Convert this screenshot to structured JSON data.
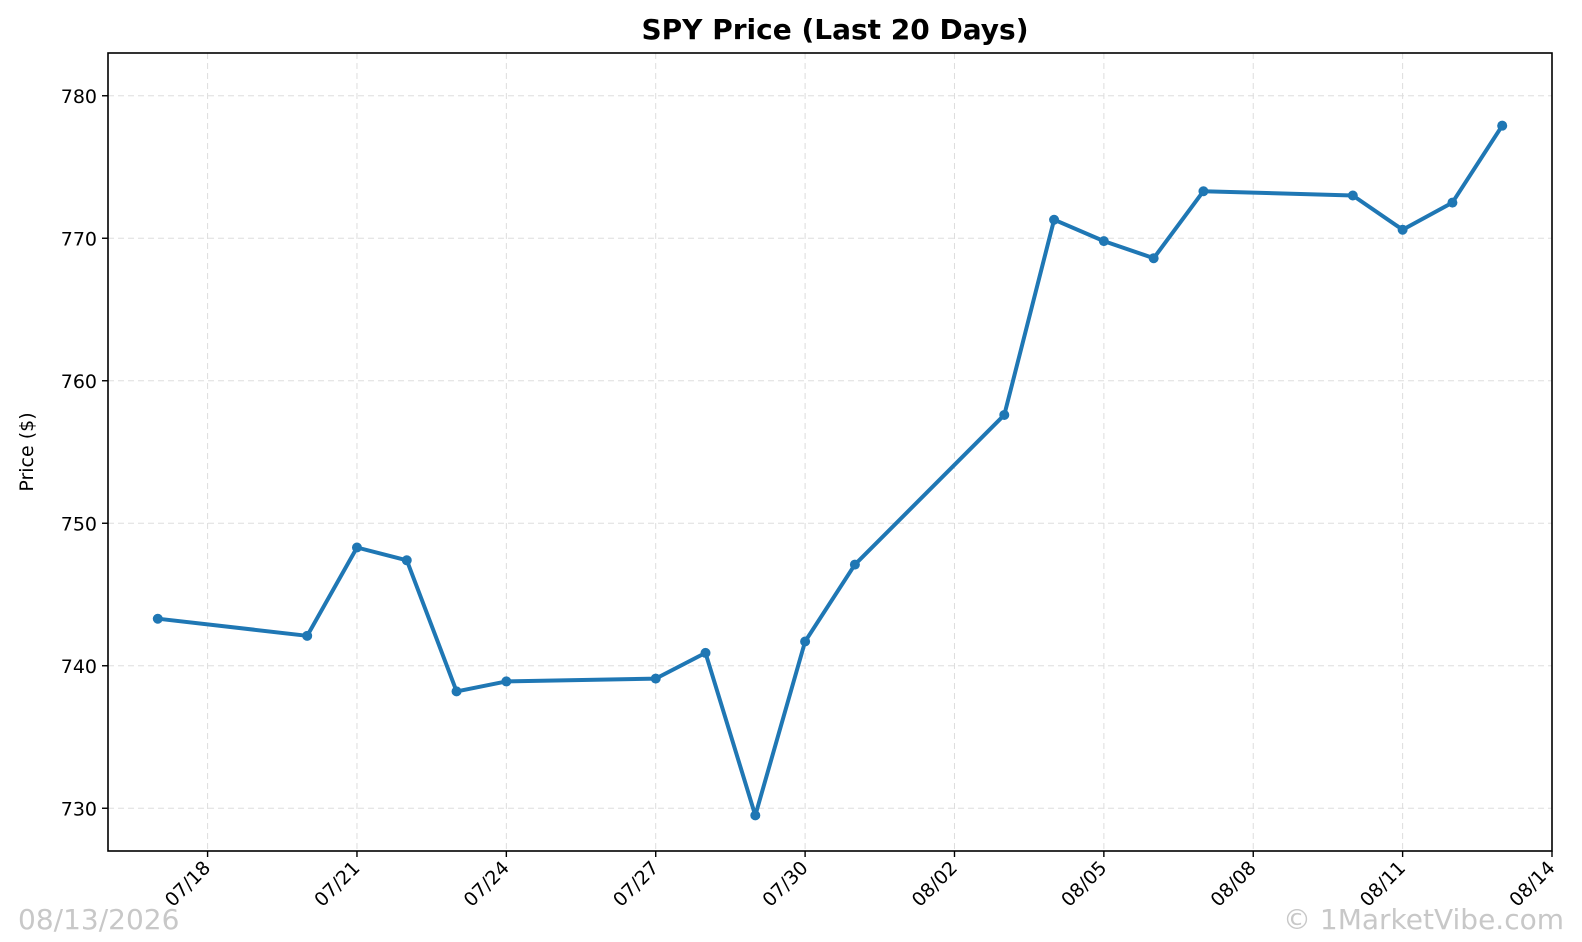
{
  "watermark": {
    "date": "08/13/2026",
    "copyright": "© 1MarketVibe.com"
  },
  "chart_data": {
    "type": "line",
    "title": "SPY Price (Last 20 Days)",
    "xlabel": "",
    "ylabel": "Price ($)",
    "x_tick_labels": [
      "07/18",
      "07/21",
      "07/24",
      "07/27",
      "07/30",
      "08/02",
      "08/05",
      "08/08",
      "08/11",
      "08/14"
    ],
    "y_ticks": [
      730,
      740,
      750,
      760,
      770,
      780
    ],
    "ylim": [
      727,
      783
    ],
    "xlim": [
      "2026-07-16",
      "2026-08-14"
    ],
    "grid": true,
    "color": "#1f77b4",
    "series": [
      {
        "x": [
          "2026-07-17",
          "2026-07-20",
          "2026-07-21",
          "2026-07-22",
          "2026-07-23",
          "2026-07-24",
          "2026-07-27",
          "2026-07-28",
          "2026-07-29",
          "2026-07-30",
          "2026-07-31",
          "2026-08-03",
          "2026-08-04",
          "2026-08-05",
          "2026-08-06",
          "2026-08-07",
          "2026-08-10",
          "2026-08-11",
          "2026-08-12",
          "2026-08-13"
        ],
        "values": [
          743.3,
          742.1,
          748.3,
          747.4,
          738.2,
          738.9,
          739.1,
          740.9,
          729.5,
          741.7,
          747.1,
          757.6,
          771.3,
          769.8,
          768.6,
          773.3,
          773.0,
          770.6,
          772.5,
          777.9
        ]
      }
    ]
  }
}
